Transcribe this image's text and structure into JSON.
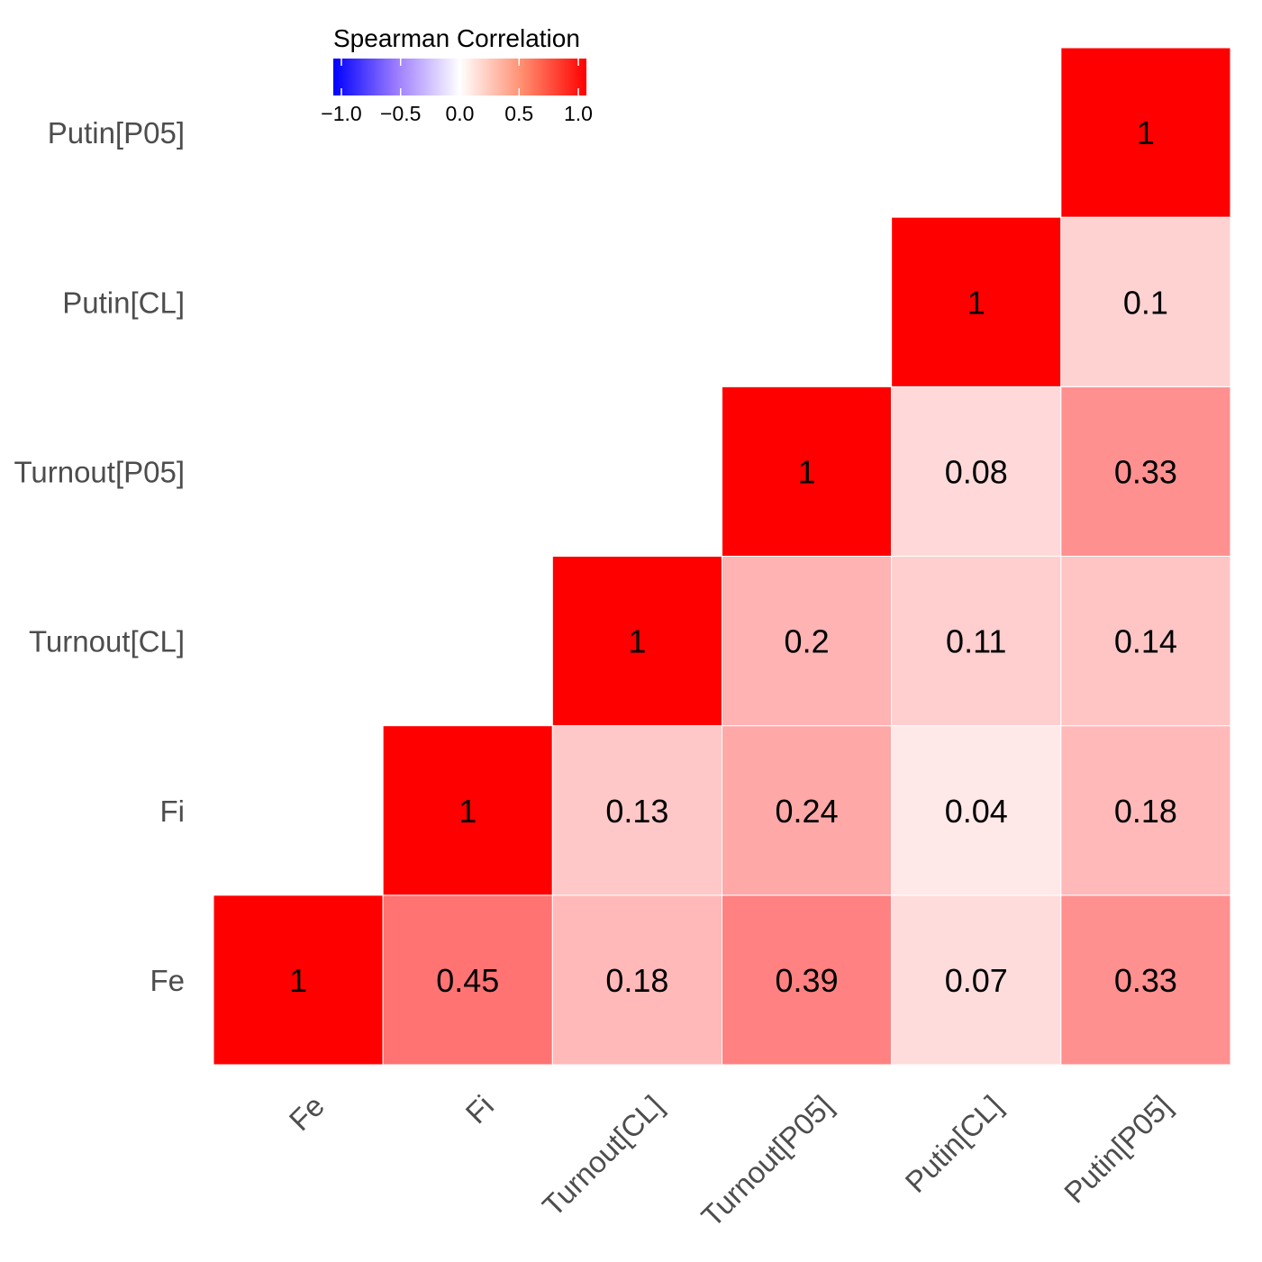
{
  "chart_data": {
    "type": "heatmap",
    "variables": [
      "Fe",
      "Fi",
      "Turnout[CL]",
      "Turnout[P05]",
      "Putin[CL]",
      "Putin[P05]"
    ],
    "values": [
      [
        1,
        null,
        null,
        null,
        null,
        null
      ],
      [
        0.45,
        1,
        null,
        null,
        null,
        null
      ],
      [
        0.18,
        0.13,
        1,
        null,
        null,
        null
      ],
      [
        0.39,
        0.24,
        0.2,
        1,
        null,
        null
      ],
      [
        0.07,
        0.04,
        0.11,
        0.08,
        1,
        null
      ],
      [
        0.33,
        0.18,
        0.14,
        0.33,
        0.1,
        1
      ]
    ],
    "cell_labels": [
      [
        "1",
        "",
        "",
        "",
        "",
        ""
      ],
      [
        "0.45",
        "1",
        "",
        "",
        "",
        ""
      ],
      [
        "0.18",
        "0.13",
        "1",
        "",
        "",
        ""
      ],
      [
        "0.39",
        "0.24",
        "0.2",
        "1",
        "",
        ""
      ],
      [
        "0.07",
        "0.04",
        "0.11",
        "0.08",
        "1",
        ""
      ],
      [
        "0.33",
        "0.18",
        "0.14",
        "0.33",
        "0.1",
        "1"
      ]
    ],
    "legend": {
      "title": "Spearman Correlation",
      "range": [
        -1,
        1
      ],
      "ticks": [
        -1,
        -0.5,
        0,
        0.5,
        1
      ],
      "tick_labels": [
        "−1.0",
        "−0.5",
        "0.0",
        "0.5",
        "1.0"
      ],
      "low_color": "#0000ff",
      "mid_color": "#ffffff",
      "high_color": "#ff0000",
      "placement": "top-left"
    },
    "colors": {
      "tick_label": "#4d4d4d",
      "cell_text": "#000000",
      "grid": "#ffffff"
    }
  }
}
